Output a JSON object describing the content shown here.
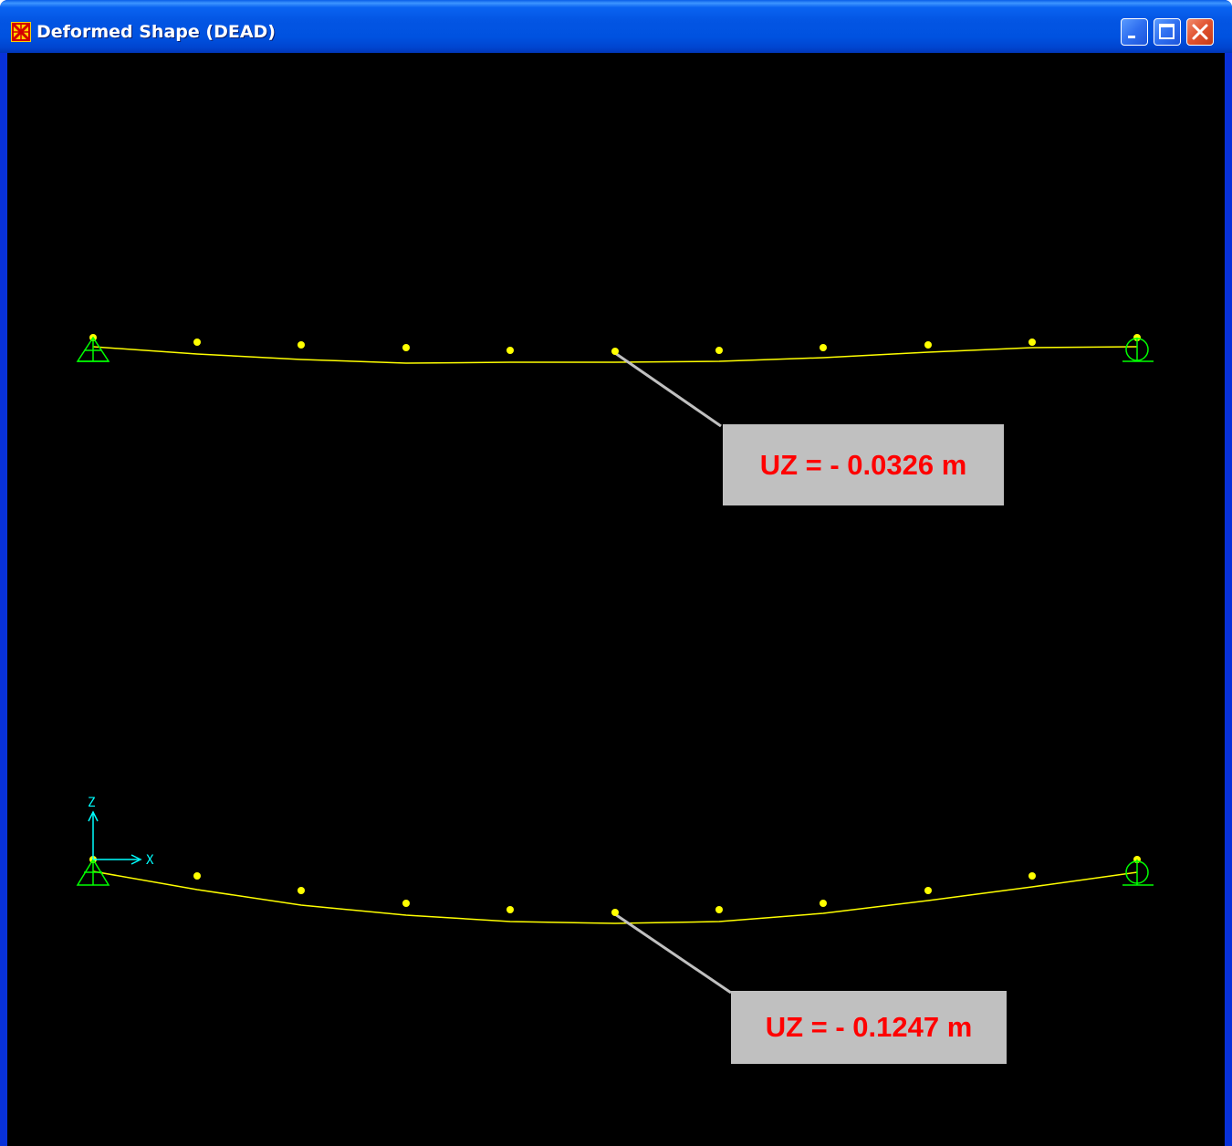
{
  "window": {
    "title": "Deformed Shape (DEAD)",
    "controls": {
      "minimize": "minimize-icon",
      "maximize": "maximize-icon",
      "close": "close-icon"
    },
    "app_icon": "sap2000-icon"
  },
  "colors": {
    "background": "#000000",
    "beam": "#ffff00",
    "joint": "#ffff00",
    "support": "#00ff00",
    "axes": "#00ffff",
    "leader": "#c0c0c0",
    "label_bg": "#c0c0c0",
    "label_text": "#ff0000"
  },
  "axes": {
    "z_label": "Z",
    "x_label": "X"
  },
  "beams": [
    {
      "name": "upper-beam",
      "label": "UZ = - 0.0326 m",
      "left_support": "pin-support-icon",
      "right_support": "roller-support-icon",
      "joint_count": 11
    },
    {
      "name": "lower-beam",
      "label": "UZ = - 0.1247 m",
      "left_support": "pin-support-icon",
      "right_support": "roller-support-icon",
      "joint_count": 11
    }
  ]
}
